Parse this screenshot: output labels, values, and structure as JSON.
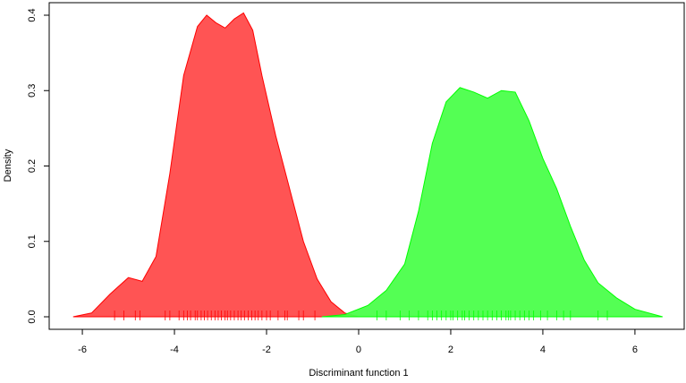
{
  "chart_data": {
    "type": "density",
    "xlabel": "Discriminant function 1",
    "ylabel": "Density",
    "xlim": [
      -6.72,
      7.07
    ],
    "ylim": [
      -0.0166,
      0.4166
    ],
    "xticks": [
      -6,
      -4,
      -2,
      0,
      2,
      4,
      6
    ],
    "yticks": [
      {
        "value": 0,
        "label": "0.0"
      },
      0.1,
      0.2,
      0.3,
      0.4
    ],
    "series": [
      {
        "color": "#ff4b4b",
        "stroke": "#ff0000",
        "x": [
          -6.2,
          -5.8,
          -5.4,
          -5.0,
          -4.7,
          -4.4,
          -4.1,
          -3.8,
          -3.5,
          -3.3,
          -3.1,
          -2.9,
          -2.7,
          -2.5,
          -2.3,
          -2.1,
          -1.8,
          -1.5,
          -1.2,
          -0.9,
          -0.6,
          -0.3,
          0.0
        ],
        "values": [
          0,
          0.005,
          0.03,
          0.052,
          0.047,
          0.08,
          0.19,
          0.32,
          0.385,
          0.4,
          0.39,
          0.383,
          0.395,
          0.403,
          0.38,
          0.32,
          0.24,
          0.17,
          0.1,
          0.05,
          0.02,
          0.005,
          0
        ],
        "rug": [
          -5.3,
          -5.1,
          -4.85,
          -4.75,
          -4.2,
          -4.1,
          -3.9,
          -3.8,
          -3.72,
          -3.65,
          -3.55,
          -3.5,
          -3.42,
          -3.35,
          -3.28,
          -3.2,
          -3.12,
          -3.05,
          -2.98,
          -2.9,
          -2.85,
          -2.78,
          -2.7,
          -2.62,
          -2.55,
          -2.48,
          -2.4,
          -2.32,
          -2.25,
          -2.18,
          -2.1,
          -2.0,
          -1.92,
          -1.75,
          -1.6,
          -1.55,
          -1.3,
          -1.2,
          -0.95
        ]
      },
      {
        "color": "#4bff4b",
        "stroke": "#00ff00",
        "x": [
          -0.8,
          -0.3,
          0.2,
          0.6,
          1.0,
          1.3,
          1.6,
          1.9,
          2.2,
          2.5,
          2.8,
          3.1,
          3.4,
          3.7,
          4.0,
          4.3,
          4.6,
          4.9,
          5.2,
          5.6,
          6.0,
          6.6
        ],
        "values": [
          0,
          0.003,
          0.015,
          0.035,
          0.07,
          0.14,
          0.23,
          0.285,
          0.304,
          0.298,
          0.29,
          0.3,
          0.298,
          0.26,
          0.21,
          0.17,
          0.12,
          0.075,
          0.045,
          0.025,
          0.01,
          0
        ],
        "rug": [
          0.4,
          0.6,
          0.9,
          1.1,
          1.3,
          1.5,
          1.6,
          1.7,
          1.8,
          1.9,
          2.0,
          2.05,
          2.15,
          2.25,
          2.3,
          2.4,
          2.5,
          2.6,
          2.7,
          2.8,
          2.9,
          3.0,
          3.1,
          3.2,
          3.25,
          3.3,
          3.4,
          3.5,
          3.6,
          3.7,
          3.8,
          3.95,
          4.1,
          4.3,
          4.45,
          4.6,
          5.2,
          5.4
        ]
      }
    ]
  }
}
